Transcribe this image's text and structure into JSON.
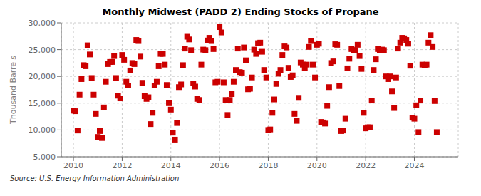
{
  "chart_data": {
    "type": "scatter",
    "title": "Monthly Midwest (PADD 2) Ending Stocks of Propane",
    "y_label": "Thousand Barrels",
    "annotations": [
      "Source: U.S. Energy Information Administration"
    ],
    "color": "#cc0000",
    "marker": "square",
    "grid": true,
    "xlim": [
      2009.5,
      2025.8
    ],
    "xticks": [
      2010,
      2012,
      2014,
      2016,
      2018,
      2020,
      2022,
      2024
    ],
    "ylim": [
      5000,
      30000
    ],
    "yticks": [
      {
        "value": 5000,
        "label": "5,000"
      },
      {
        "value": 10000,
        "label": "10,000"
      },
      {
        "value": 15000,
        "label": "15,000"
      },
      {
        "value": 20000,
        "label": "20,000"
      },
      {
        "value": 25000,
        "label": "25,000"
      },
      {
        "value": 30000,
        "label": "30,000"
      }
    ],
    "x": [
      2010.0,
      2010.08,
      2010.17,
      2010.25,
      2010.33,
      2010.42,
      2010.5,
      2010.58,
      2010.67,
      2010.75,
      2010.83,
      2010.92,
      2011.0,
      2011.08,
      2011.17,
      2011.25,
      2011.33,
      2011.42,
      2011.5,
      2011.58,
      2011.67,
      2011.75,
      2011.83,
      2011.92,
      2012.0,
      2012.08,
      2012.17,
      2012.25,
      2012.33,
      2012.42,
      2012.5,
      2012.58,
      2012.67,
      2012.75,
      2012.83,
      2012.92,
      2013.0,
      2013.08,
      2013.17,
      2013.25,
      2013.33,
      2013.42,
      2013.5,
      2013.58,
      2013.67,
      2013.75,
      2013.83,
      2013.92,
      2014.0,
      2014.08,
      2014.17,
      2014.25,
      2014.33,
      2014.42,
      2014.5,
      2014.58,
      2014.67,
      2014.75,
      2014.83,
      2014.92,
      2015.0,
      2015.08,
      2015.17,
      2015.25,
      2015.33,
      2015.42,
      2015.5,
      2015.58,
      2015.67,
      2015.75,
      2015.83,
      2015.92,
      2016.0,
      2016.08,
      2016.17,
      2016.25,
      2016.33,
      2016.42,
      2016.5,
      2016.58,
      2016.67,
      2016.75,
      2016.83,
      2016.92,
      2017.0,
      2017.08,
      2017.17,
      2017.25,
      2017.33,
      2017.42,
      2017.5,
      2017.58,
      2017.67,
      2017.75,
      2017.83,
      2017.92,
      2018.0,
      2018.08,
      2018.17,
      2018.25,
      2018.33,
      2018.42,
      2018.5,
      2018.58,
      2018.67,
      2018.75,
      2018.83,
      2018.92,
      2019.0,
      2019.08,
      2019.17,
      2019.25,
      2019.33,
      2019.42,
      2019.5,
      2019.58,
      2019.67,
      2019.75,
      2019.83,
      2019.92,
      2020.0,
      2020.08,
      2020.17,
      2020.25,
      2020.33,
      2020.42,
      2020.5,
      2020.58,
      2020.67,
      2020.75,
      2020.83,
      2020.92,
      2021.0,
      2021.08,
      2021.17,
      2021.25,
      2021.33,
      2021.42,
      2021.5,
      2021.58,
      2021.67,
      2021.75,
      2021.83,
      2021.92,
      2022.0,
      2022.08,
      2022.17,
      2022.25,
      2022.33,
      2022.42,
      2022.5,
      2022.58,
      2022.67,
      2022.75,
      2022.83,
      2022.92,
      2023.0,
      2023.08,
      2023.17,
      2023.25,
      2023.33,
      2023.42,
      2023.5,
      2023.58,
      2023.67,
      2023.75,
      2023.83,
      2023.92,
      2024.0,
      2024.08,
      2024.17,
      2024.25,
      2024.33,
      2024.42,
      2024.5,
      2024.58,
      2024.67,
      2024.75,
      2024.83,
      2024.92
    ],
    "values": [
      13600,
      13500,
      9900,
      16600,
      19500,
      22100,
      21900,
      25800,
      24100,
      19700,
      16600,
      13000,
      8700,
      9800,
      8500,
      14200,
      19000,
      22300,
      22700,
      22700,
      23800,
      19700,
      16400,
      15900,
      24000,
      23100,
      19000,
      18300,
      21100,
      22500,
      22300,
      26800,
      26600,
      23700,
      18800,
      16300,
      15800,
      16100,
      11100,
      13200,
      18300,
      19000,
      21900,
      24200,
      24200,
      22200,
      18400,
      15000,
      13800,
      9500,
      8200,
      11300,
      18000,
      18500,
      22100,
      25200,
      27400,
      26900,
      24900,
      18700,
      18100,
      15800,
      15600,
      22200,
      25000,
      24900,
      26700,
      27200,
      26600,
      25100,
      18900,
      19000,
      29200,
      28200,
      18900,
      15600,
      12800,
      15600,
      16700,
      19000,
      21200,
      25200,
      20800,
      20700,
      25400,
      23000,
      17600,
      17700,
      19800,
      25000,
      24200,
      26200,
      26300,
      24600,
      21200,
      19800,
      10000,
      10100,
      13200,
      15700,
      18600,
      20500,
      21200,
      24000,
      25600,
      25400,
      21600,
      19900,
      20200,
      13000,
      11700,
      16000,
      22600,
      22200,
      21600,
      22200,
      25500,
      26600,
      22200,
      19800,
      25900,
      26100,
      11500,
      11400,
      11200,
      14500,
      18000,
      22500,
      22800,
      26000,
      25900,
      18200,
      9800,
      9900,
      12100,
      21500,
      23300,
      25100,
      24900,
      24900,
      25900,
      23800,
      21400,
      13200,
      10300,
      10500,
      10500,
      15500,
      21200,
      23200,
      25100,
      24900,
      25000,
      24900,
      20000,
      19500,
      20000,
      17200,
      14100,
      19800,
      25200,
      26300,
      27200,
      27100,
      26800,
      26100,
      22000,
      12300,
      12100,
      14600,
      9600,
      15500,
      22200,
      22100,
      22200,
      26300,
      27700,
      25500,
      15400,
      9600
    ]
  }
}
